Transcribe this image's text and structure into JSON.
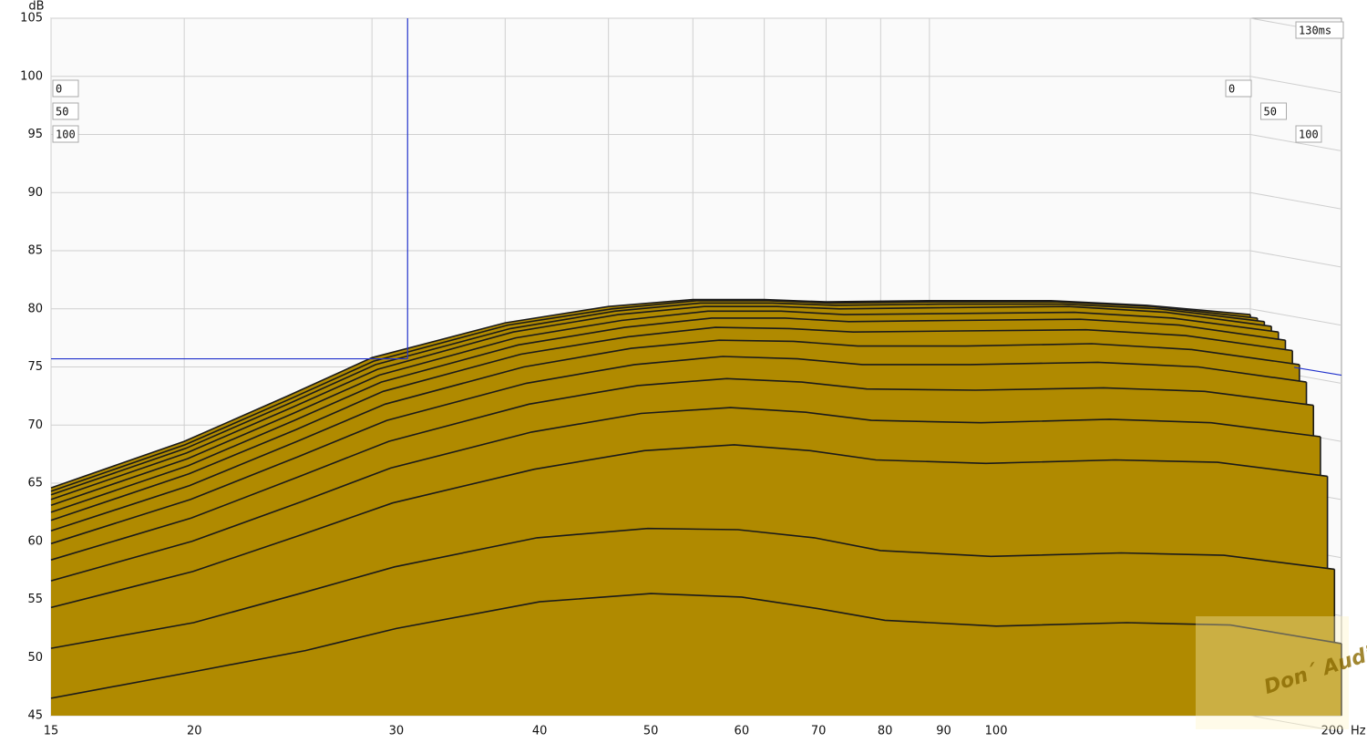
{
  "chart_data": {
    "type": "waterfall",
    "y_unit": "dB",
    "x_unit": "Hz",
    "x": [
      15,
      20,
      25,
      30,
      40,
      50,
      60,
      70,
      80,
      100,
      130,
      160,
      200
    ],
    "xlim": [
      15,
      200
    ],
    "xticks": [
      15,
      20,
      30,
      40,
      50,
      60,
      70,
      80,
      90,
      100,
      200
    ],
    "log_x": true,
    "ylim": [
      45,
      105
    ],
    "yticks": [
      45,
      50,
      55,
      60,
      65,
      70,
      75,
      80,
      85,
      90,
      95,
      100,
      105
    ],
    "grid": true,
    "zlim": [
      0,
      130
    ],
    "zticks": [
      0,
      50,
      100,
      {
        "value": 130,
        "label": "130ms"
      }
    ],
    "times": [
      0,
      10,
      20,
      30,
      40,
      50,
      60,
      70,
      80,
      90,
      100,
      110,
      120,
      130
    ],
    "color": "#b08a00",
    "line_color": "#1a1a1a",
    "series": [
      {
        "values": [
          64.6,
          68.6,
          72.5,
          75.8,
          78.8,
          80.2,
          80.8,
          80.8,
          80.6,
          80.7,
          80.7,
          80.3,
          79.5
        ]
      },
      {
        "values": [
          64.3,
          68.3,
          72.2,
          75.5,
          78.6,
          80.0,
          80.7,
          80.7,
          80.5,
          80.6,
          80.6,
          80.2,
          79.2
        ]
      },
      {
        "values": [
          64.0,
          68.0,
          71.9,
          75.2,
          78.3,
          79.8,
          80.5,
          80.5,
          80.3,
          80.4,
          80.4,
          80.0,
          78.9
        ]
      },
      {
        "values": [
          63.6,
          67.6,
          71.5,
          74.8,
          78.0,
          79.5,
          80.2,
          80.2,
          80.0,
          80.1,
          80.2,
          79.7,
          78.5
        ]
      },
      {
        "values": [
          63.1,
          67.1,
          71.0,
          74.3,
          77.5,
          79.0,
          79.8,
          79.8,
          79.5,
          79.6,
          79.7,
          79.2,
          78.0
        ]
      },
      {
        "values": [
          62.5,
          66.5,
          70.4,
          73.7,
          76.9,
          78.4,
          79.2,
          79.2,
          78.9,
          79.0,
          79.1,
          78.6,
          77.3
        ]
      },
      {
        "values": [
          61.8,
          65.8,
          69.6,
          72.9,
          76.1,
          77.6,
          78.4,
          78.3,
          78.0,
          78.1,
          78.2,
          77.7,
          76.4
        ]
      },
      {
        "values": [
          60.9,
          64.8,
          68.6,
          71.8,
          75.0,
          76.6,
          77.3,
          77.2,
          76.8,
          76.8,
          77.0,
          76.5,
          75.2
        ]
      },
      {
        "values": [
          59.8,
          63.6,
          67.3,
          70.4,
          73.6,
          75.2,
          75.9,
          75.7,
          75.2,
          75.2,
          75.4,
          75.0,
          73.7
        ]
      },
      {
        "values": [
          58.4,
          62.0,
          65.6,
          68.6,
          71.8,
          73.4,
          74.0,
          73.7,
          73.1,
          73.0,
          73.2,
          72.9,
          71.7
        ]
      },
      {
        "values": [
          56.6,
          60.0,
          63.4,
          66.3,
          69.4,
          71.0,
          71.5,
          71.1,
          70.4,
          70.2,
          70.5,
          70.2,
          69.0
        ]
      },
      {
        "values": [
          54.3,
          57.4,
          60.6,
          63.3,
          66.2,
          67.8,
          68.3,
          67.8,
          67.0,
          66.7,
          67.0,
          66.8,
          65.6
        ]
      },
      {
        "values": [
          50.8,
          53.0,
          55.6,
          57.8,
          60.3,
          61.1,
          61.0,
          60.3,
          59.2,
          58.7,
          59.0,
          58.8,
          57.6
        ]
      },
      {
        "values": [
          46.5,
          48.8,
          50.6,
          52.5,
          54.8,
          55.5,
          55.2,
          54.2,
          53.2,
          52.7,
          53.0,
          52.8,
          51.2
        ]
      }
    ],
    "cursor": {
      "x": 32.4,
      "y": 75.7,
      "color": "#2233cc"
    },
    "watermark": "Don´ Audio"
  }
}
